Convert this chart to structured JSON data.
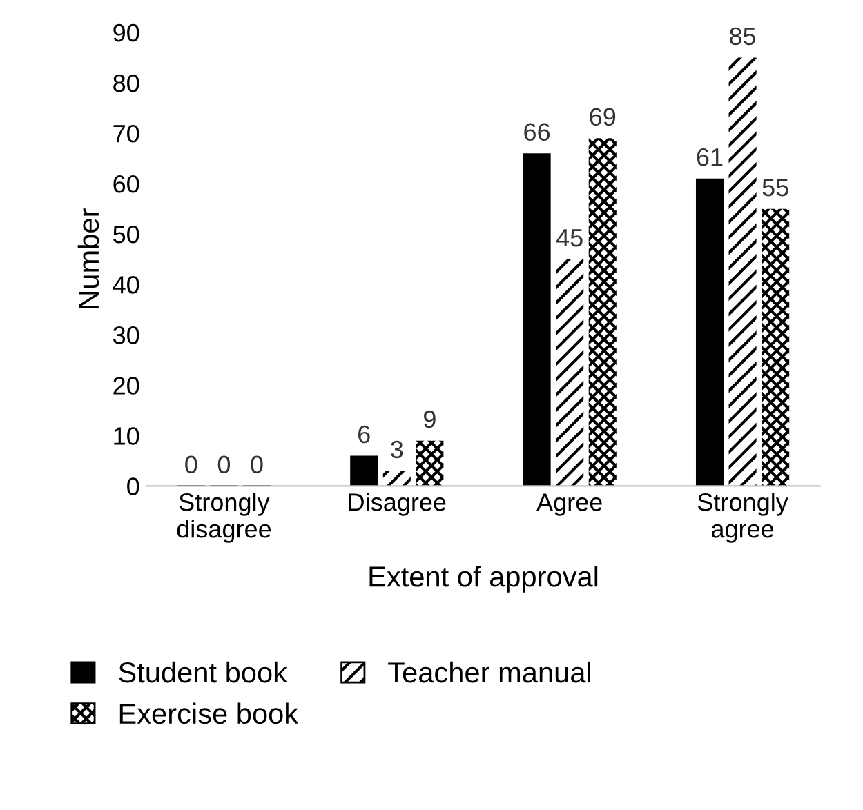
{
  "chart_data": {
    "type": "bar",
    "xlabel": "Extent of approval",
    "ylabel": "Number",
    "categories": [
      "Strongly\ndisagree",
      "Disagree",
      "Agree",
      "Strongly\nagree"
    ],
    "series": [
      {
        "name": "Student book",
        "color": "#000000",
        "values": [
          0,
          6,
          66,
          61
        ]
      },
      {
        "name": "Teacher manual",
        "color": "#000000",
        "values": [
          0,
          3,
          45,
          85
        ]
      },
      {
        "name": "Exercise book",
        "color": "#000000",
        "values": [
          0,
          9,
          69,
          55
        ]
      }
    ],
    "ylim": [
      0,
      90
    ],
    "yticks": [
      0,
      10,
      20,
      30,
      40,
      50,
      60,
      70,
      80,
      90
    ],
    "data_labels": true,
    "legend": "bottom",
    "grid": false
  }
}
